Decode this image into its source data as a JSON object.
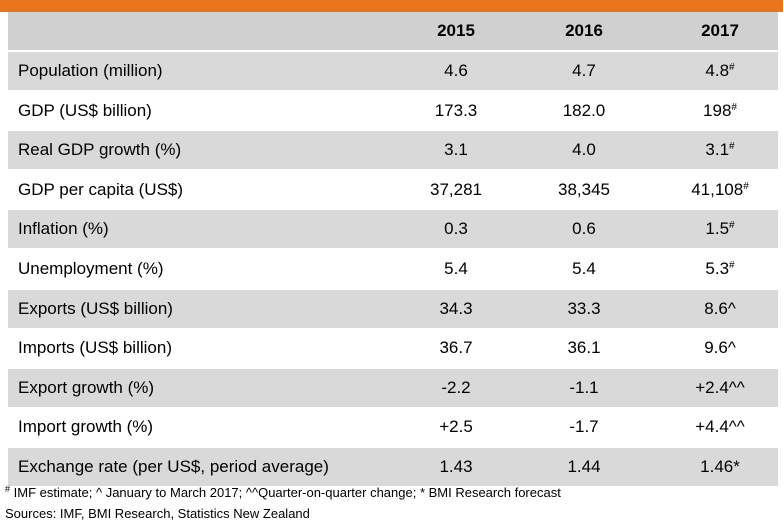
{
  "header": {
    "years": [
      "2015",
      "2016",
      "2017"
    ]
  },
  "rows": [
    {
      "label": "Population (million)",
      "v2015": "4.6",
      "v2016": "4.7",
      "v2017": "4.8",
      "mark": "#"
    },
    {
      "label": "GDP (US$ billion)",
      "v2015": "173.3",
      "v2016": "182.0",
      "v2017": "198",
      "mark": "#"
    },
    {
      "label": "Real GDP growth (%)",
      "v2015": "3.1",
      "v2016": "4.0",
      "v2017": "3.1",
      "mark": "#"
    },
    {
      "label": "GDP per capita (US$)",
      "v2015": "37,281",
      "v2016": "38,345",
      "v2017": "41,108",
      "mark": "#"
    },
    {
      "label": "Inflation (%)",
      "v2015": "0.3",
      "v2016": "0.6",
      "v2017": "1.5",
      "mark": "#"
    },
    {
      "label": "Unemployment (%)",
      "v2015": "5.4",
      "v2016": "5.4",
      "v2017": "5.3",
      "mark": "#"
    },
    {
      "label": "Exports (US$ billion)",
      "v2015": "34.3",
      "v2016": "33.3",
      "v2017": "8.6^",
      "mark": ""
    },
    {
      "label": "Imports (US$ billion)",
      "v2015": "36.7",
      "v2016": "36.1",
      "v2017": "9.6^",
      "mark": ""
    },
    {
      "label": "Export growth (%)",
      "v2015": "-2.2",
      "v2016": "-1.1",
      "v2017": "+2.4^^",
      "mark": ""
    },
    {
      "label": "Import growth (%)",
      "v2015": "+2.5",
      "v2016": "-1.7",
      "v2017": "+4.4^^",
      "mark": ""
    },
    {
      "label": "Exchange rate (per US$, period average)",
      "v2015": "1.43",
      "v2016": "1.44",
      "v2017": "1.46*",
      "mark": ""
    }
  ],
  "notes": {
    "mark": "#",
    "line1": " IMF estimate; ^ January to March 2017; ^^Quarter-on-quarter change; * BMI Research forecast",
    "line2": "Sources: IMF, BMI Research, Statistics New Zealand"
  },
  "colors": {
    "accent": "#e8741c",
    "header_bg": "#d0d0d0",
    "shade_bg": "#d9d9d9"
  }
}
